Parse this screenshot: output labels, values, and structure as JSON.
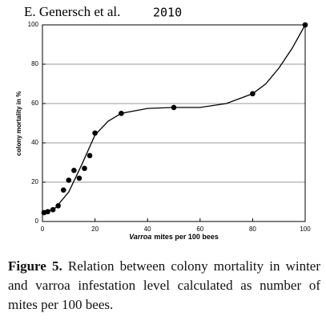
{
  "header": {
    "authors": "E. Genersch et al.",
    "year": "2010"
  },
  "chart_data": {
    "type": "scatter",
    "y_label": "colony mortality in %",
    "x_label": {
      "italic": "Varroa",
      "rest": "mites per 100 bees"
    },
    "x": [
      0.6,
      2,
      4,
      6,
      8,
      10,
      12,
      14,
      16,
      18,
      20,
      30,
      50,
      80,
      100
    ],
    "values": [
      4.5,
      5,
      6,
      8,
      16,
      21,
      26,
      22,
      27,
      33.5,
      45,
      55,
      58,
      65,
      100
    ],
    "color": "#000000",
    "fit": {
      "x": [
        0,
        5,
        10,
        15,
        18,
        20,
        25,
        30,
        40,
        50,
        60,
        70,
        80,
        85,
        90,
        95,
        100
      ],
      "values": [
        4,
        7,
        15,
        29,
        38,
        44,
        51,
        55,
        57.5,
        58,
        58,
        60,
        65,
        70,
        78,
        88,
        100
      ]
    },
    "xlim": [
      0,
      100
    ],
    "ylim": [
      0,
      100
    ],
    "xticks": [
      0,
      20,
      40,
      60,
      80,
      100
    ],
    "yticks": [
      0,
      20,
      40,
      60,
      80,
      100
    ],
    "grid": true
  },
  "caption": {
    "label": "Figure 5.",
    "text": "Relation between colony mortality in winter and varroa infestation level calculated as number of mites per 100 bees."
  }
}
